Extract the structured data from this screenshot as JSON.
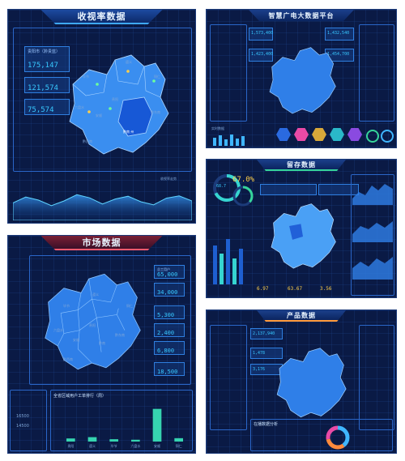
{
  "panel1": {
    "title": "收视率数据",
    "stats": [
      {
        "label": "贵阳市（黔贵蓝）",
        "value": "175,147"
      },
      {
        "label": "",
        "value": "121,574"
      },
      {
        "label": "",
        "value": "75,574"
      }
    ],
    "map_labels": [
      "毕节",
      "遵义",
      "铜仁",
      "六盘水",
      "安顺",
      "贵阳",
      "黔南",
      "黔东南",
      "黔西南",
      "黔南 州"
    ],
    "highlight_label": "黔南 州",
    "legend": "收视率走势"
  },
  "panel2": {
    "title": "智慧广电大数据平台",
    "top_stats": [
      "1,573,400",
      "1,432,540",
      "1,423,400",
      "1,454,700"
    ],
    "tab_label": "实时数据"
  },
  "panel3": {
    "title": "市场数据",
    "side_items": [
      {
        "label": "总工用户",
        "value": "65,000"
      },
      {
        "label": "",
        "value": "34,000"
      },
      {
        "label": "",
        "value": "5,300"
      },
      {
        "label": "",
        "value": "2,400"
      },
      {
        "label": "",
        "value": "6,800"
      },
      {
        "label": "",
        "value": "18,500"
      }
    ],
    "map_labels": [
      "毕节",
      "遵义",
      "铜仁",
      "六盘水",
      "安顺",
      "贵阳",
      "黔东南",
      "黔南",
      "黔西南"
    ],
    "bottom_title": "全省区域用户工单排行（周）",
    "bottom_left_values": [
      "16500",
      "14500"
    ]
  },
  "panel4": {
    "title": "留存数据",
    "percent": "67.0%",
    "donut_values": [
      "68.7",
      "36.5",
      "64.5"
    ],
    "bottom_values": [
      "6.97",
      "63.67",
      "3.56"
    ]
  },
  "panel5": {
    "title": "产品数据",
    "top_stats": [
      "2,137,940",
      "1,478",
      "3,176"
    ],
    "bottom_title": "在播数据分析"
  },
  "colors": {
    "panel_bg": "#0a1a45",
    "accent": "#38c8ff",
    "map": "#2f7fe8"
  },
  "chart_data": [
    {
      "type": "bar",
      "title": "全省区域用户工单排行（周）",
      "categories": [
        "贵阳",
        "遵义",
        "毕节",
        "六盘水",
        "安顺",
        "铜仁"
      ],
      "values": [
        1200,
        1700,
        900,
        700,
        12600,
        1300
      ],
      "ylim": [
        0,
        15000
      ]
    },
    {
      "type": "area",
      "title": "",
      "values": [
        45,
        60,
        52,
        38,
        50,
        66,
        58,
        42,
        55,
        62,
        48,
        40,
        57,
        63,
        50
      ],
      "ylim": [
        0,
        100
      ]
    }
  ]
}
